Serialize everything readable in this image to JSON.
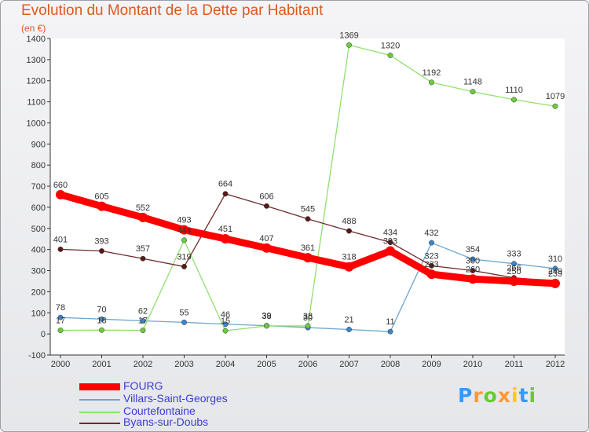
{
  "chart_data": {
    "type": "line",
    "title": "Evolution du Montant de la Dette par Habitant",
    "unit": "(en €)",
    "xlabel": "",
    "ylabel": "",
    "x": [
      "2000",
      "2001",
      "2002",
      "2003",
      "2004",
      "2005",
      "2006",
      "2007",
      "2008",
      "2009",
      "2010",
      "2011",
      "2012"
    ],
    "ylim": [
      -100,
      1400
    ],
    "yticks": [
      -100,
      0,
      100,
      200,
      300,
      400,
      500,
      600,
      700,
      800,
      900,
      1000,
      1100,
      1200,
      1300,
      1400
    ],
    "grid": false,
    "legend_position": "bottom-left",
    "series": [
      {
        "name": "FOURG",
        "color": "#ff0000",
        "values": [
          660,
          605,
          552,
          493,
          451,
          407,
          361,
          318,
          393,
          283,
          260,
          250,
          239
        ],
        "labels": [
          "660",
          "605",
          "552",
          "493",
          "451",
          "407",
          "361",
          "318",
          "393",
          "283",
          "260",
          "250",
          "239"
        ]
      },
      {
        "name": "Villars-Saint-Georges",
        "color": "#6ea6cf",
        "marker_color": "#3a86cc",
        "values": [
          78,
          70,
          62,
          55,
          46,
          39,
          30,
          21,
          11,
          432,
          354,
          333,
          310
        ],
        "labels": [
          "78",
          "70",
          "62",
          "55",
          "46",
          "39",
          "30",
          "21",
          "11",
          "432",
          "354",
          "333",
          "310"
        ]
      },
      {
        "name": "Courtefontaine",
        "color": "#90e070",
        "marker_color": "#6ccc3c",
        "values": [
          17,
          18,
          17,
          444,
          15,
          38,
          38,
          1369,
          1320,
          1192,
          1148,
          1110,
          1079
        ],
        "labels": [
          "17",
          "18",
          "17",
          "444",
          "15",
          "38",
          "38",
          "1369",
          "1320",
          "1192",
          "1148",
          "1110",
          "1079"
        ]
      },
      {
        "name": "Byans-sur-Doubs",
        "color": "#6e2c2c",
        "marker_color": "#5a1818",
        "values": [
          401,
          393,
          357,
          319,
          664,
          606,
          545,
          488,
          434,
          323,
          300,
          266,
          249
        ],
        "labels": [
          "401",
          "393",
          "357",
          "319",
          "664",
          "606",
          "545",
          "488",
          "434",
          "323",
          "300",
          "266",
          "249"
        ]
      }
    ]
  },
  "brand": {
    "letters": [
      "P",
      "r",
      "o",
      "x",
      "i",
      "t",
      "i"
    ],
    "colors": [
      "#3399ff",
      "#ff9933",
      "#66cc33",
      "#ff9933",
      "#ffcc00",
      "#3399ff",
      "#66cc33"
    ]
  }
}
